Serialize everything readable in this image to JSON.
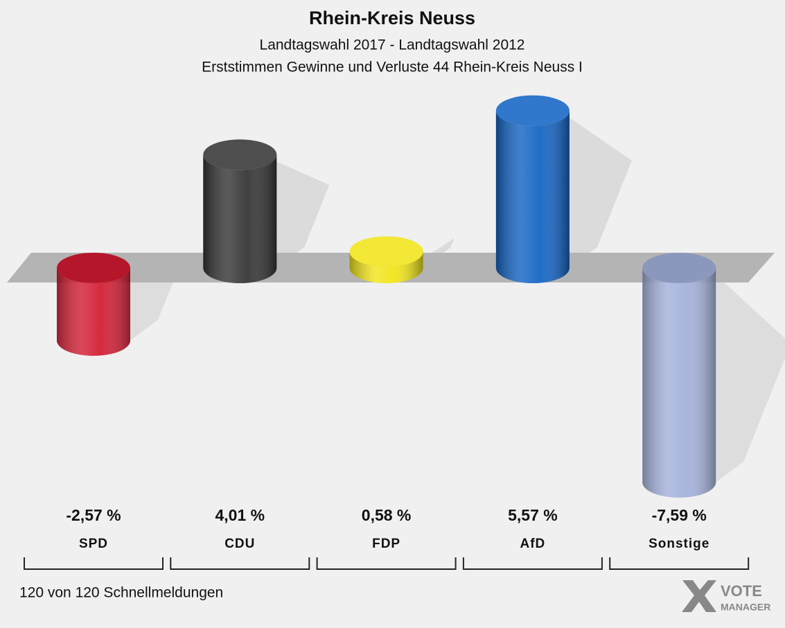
{
  "chart_data": {
    "type": "bar",
    "title": "Rhein-Kreis Neuss",
    "subtitle": [
      "Landtagswahl 2017 - Landtagswahl 2012",
      "Erststimmen Gewinne und Verluste 44 Rhein-Kreis Neuss I"
    ],
    "categories": [
      "SPD",
      "CDU",
      "FDP",
      "AfD",
      "Sonstige"
    ],
    "values": [
      -2.57,
      4.01,
      0.58,
      5.57,
      -7.59
    ],
    "value_labels": [
      "-2,57 %",
      "4,01 %",
      "0,58 %",
      "5,57 %",
      "-7,59 %"
    ],
    "colors": [
      "#d0021b",
      "#363636",
      "#f2e51a",
      "#1565c4",
      "#9aa9d9"
    ],
    "footnote": "120 von 120 Schnellmeldungen",
    "logo": [
      "VOTE",
      "MANAGER"
    ]
  }
}
